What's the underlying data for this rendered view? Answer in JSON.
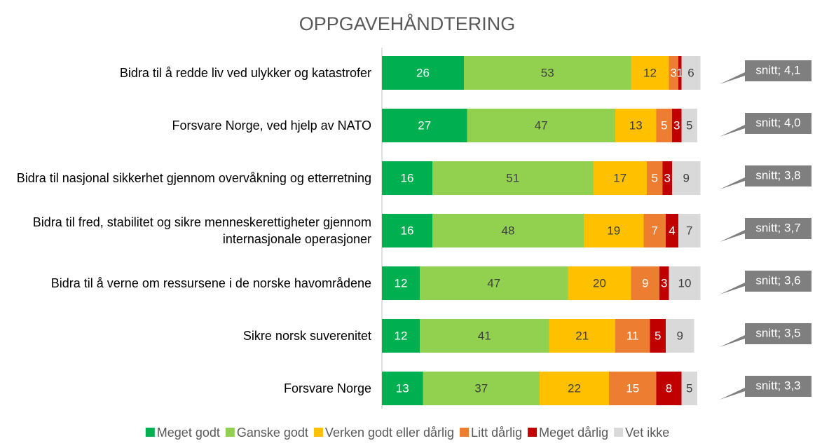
{
  "chart_data": {
    "type": "bar",
    "orientation": "horizontal",
    "stacked": true,
    "title": "OPPGAVEHÅNDTERING",
    "categories": [
      "Bidra til å redde liv ved ulykker og katastrofer",
      "Forsvare Norge, ved hjelp av NATO",
      "Bidra til nasjonal sikkerhet gjennom overvåkning og etterretning",
      "Bidra til fred, stabilitet og sikre menneskerettigheter gjennom internasjonale operasjoner",
      "Bidra til å verne om ressursene i de norske havområdene",
      "Sikre norsk suverenitet",
      "Forsvare Norge"
    ],
    "series": [
      {
        "name": "Meget godt",
        "color": "#00b050",
        "values": [
          26,
          27,
          16,
          16,
          12,
          12,
          13
        ]
      },
      {
        "name": "Ganske godt",
        "color": "#92d050",
        "values": [
          53,
          47,
          51,
          48,
          47,
          41,
          37
        ]
      },
      {
        "name": "Verken godt eller dårlig",
        "color": "#ffc000",
        "values": [
          12,
          13,
          17,
          19,
          20,
          21,
          22
        ]
      },
      {
        "name": "Litt dårlig",
        "color": "#ed7d31",
        "values": [
          3,
          5,
          5,
          7,
          9,
          11,
          15
        ]
      },
      {
        "name": "Meget dårlig",
        "color": "#c00000",
        "values": [
          1,
          3,
          3,
          4,
          3,
          5,
          8
        ]
      },
      {
        "name": "Vet ikke",
        "color": "#d9d9d9",
        "values": [
          6,
          5,
          9,
          7,
          10,
          9,
          5
        ]
      }
    ],
    "annotations": [
      "snitt; 4,1",
      "snitt; 4,0",
      "snitt; 3,8",
      "snitt; 3,7",
      "snitt; 3,6",
      "snitt; 3,5",
      "snitt; 3,3"
    ]
  }
}
